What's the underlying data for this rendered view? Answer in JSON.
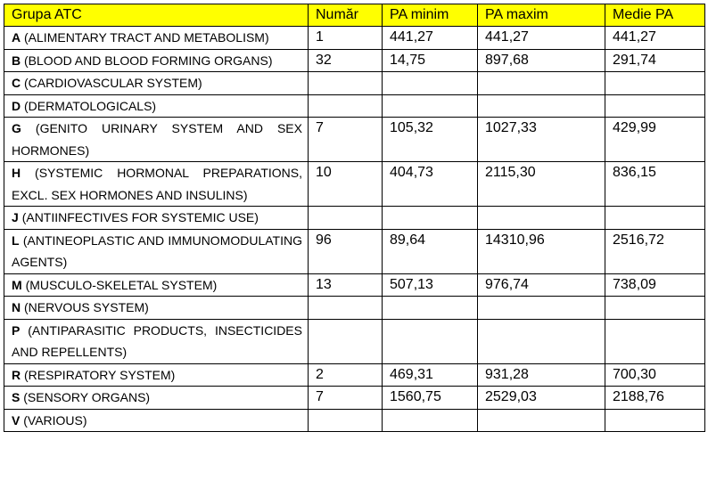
{
  "table": {
    "header": [
      "Grupa ATC",
      "Număr",
      "PA minim",
      "PA maxim",
      "Medie PA"
    ],
    "rows": [
      {
        "code": "A",
        "name": "(ALIMENTARY TRACT AND METABOLISM)",
        "cells": [
          "1",
          "441,27",
          "441,27",
          "441,27"
        ]
      },
      {
        "code": "B",
        "name": "(BLOOD AND BLOOD FORMING ORGANS)",
        "cells": [
          "32",
          "14,75",
          "897,68",
          "291,74"
        ]
      },
      {
        "code": "C",
        "name": "(CARDIOVASCULAR SYSTEM)",
        "cells": [
          null,
          null,
          null,
          null
        ]
      },
      {
        "code": "D",
        "name": "(DERMATOLOGICALS)",
        "cells": [
          null,
          null,
          null,
          null
        ]
      },
      {
        "code": "G",
        "name": "(GENITO URINARY SYSTEM AND SEX HORMONES)",
        "cells": [
          "7",
          "105,32",
          "1027,33",
          "429,99"
        ]
      },
      {
        "code": "H",
        "name": "(SYSTEMIC HORMONAL PREPARATIONS, EXCL. SEX HORMONES AND INSULINS)",
        "cells": [
          "10",
          "404,73",
          "2115,30",
          "836,15"
        ]
      },
      {
        "code": "J",
        "name": "(ANTIINFECTIVES FOR SYSTEMIC USE)",
        "cells": [
          null,
          null,
          null,
          null
        ]
      },
      {
        "code": "L",
        "name": "(ANTINEOPLASTIC AND IMMUNOMODULATING AGENTS)",
        "cells": [
          "96",
          "89,64",
          "14310,96",
          "2516,72"
        ]
      },
      {
        "code": "M",
        "name": "(MUSCULO-SKELETAL SYSTEM)",
        "cells": [
          "13",
          "507,13",
          "976,74",
          "738,09"
        ]
      },
      {
        "code": "N",
        "name": "(NERVOUS SYSTEM)",
        "cells": [
          null,
          null,
          null,
          null
        ]
      },
      {
        "code": "P",
        "name": "(ANTIPARASITIC PRODUCTS, INSECTICIDES AND REPELLENTS)",
        "cells": [
          null,
          null,
          null,
          null
        ]
      },
      {
        "code": "R",
        "name": "(RESPIRATORY SYSTEM)",
        "cells": [
          "2",
          "469,31",
          "931,28",
          "700,30"
        ]
      },
      {
        "code": "S",
        "name": "(SENSORY ORGANS)",
        "cells": [
          "7",
          "1560,75",
          "2529,03",
          "2188,76"
        ]
      },
      {
        "code": "V",
        "name": "(VARIOUS)",
        "cells": [
          null,
          null,
          null,
          null
        ]
      }
    ]
  }
}
